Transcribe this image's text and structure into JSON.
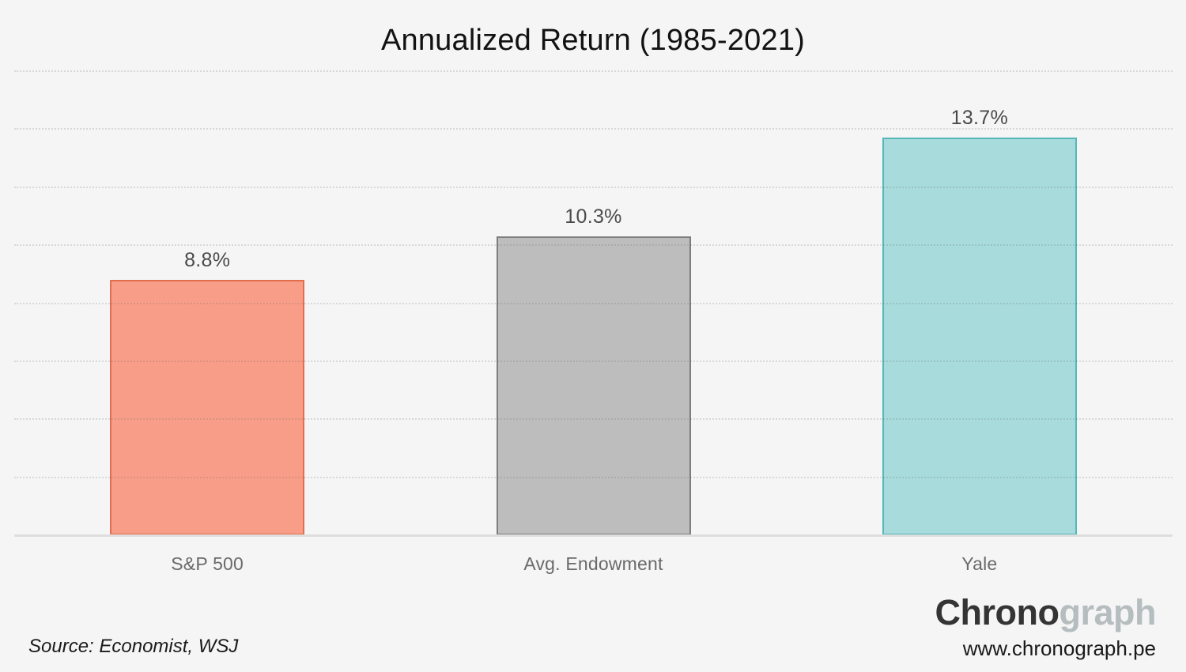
{
  "title": "Annualized Return (1985-2021)",
  "source_note": "Source: Economist, WSJ",
  "branding": {
    "logo_primary": "Chrono",
    "logo_secondary": "graph",
    "website": "www.chronograph.pe"
  },
  "chart_data": {
    "type": "bar",
    "title": "Annualized Return (1985-2021)",
    "categories": [
      "S&P 500",
      "Avg. Endowment",
      "Yale"
    ],
    "values": [
      8.8,
      10.3,
      13.7
    ],
    "value_labels": [
      "8.8%",
      "10.3%",
      "13.7%"
    ],
    "xlabel": "",
    "ylabel": "",
    "ylim": [
      0,
      16
    ],
    "gridline_step": 2,
    "grid": true,
    "legend": "none",
    "bar_fill_colors": [
      "#f89e88",
      "#bdbdbd",
      "#a8dbdc"
    ],
    "bar_border_colors": [
      "#e26e4f",
      "#7e7e7e",
      "#55b7b9"
    ]
  },
  "layout_colors": {
    "background": "#f5f5f5",
    "axis_line": "#dedede",
    "title_text": "#121212",
    "value_label_text": "#4a4a4a",
    "category_label_text": "#6a6a6a"
  }
}
